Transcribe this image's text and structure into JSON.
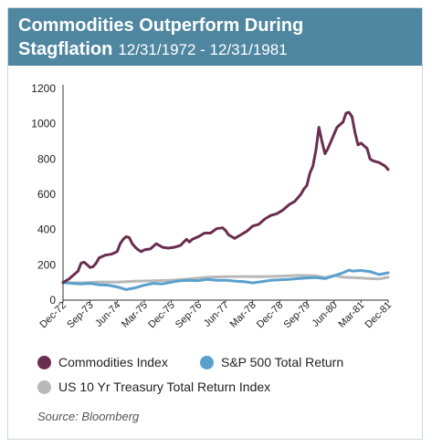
{
  "header": {
    "title_line1": "Commodities Outperform During",
    "title_line2": "Stagflation",
    "date_range": "12/31/1972 - 12/31/1981"
  },
  "colors": {
    "header_bg": "#4f86a0",
    "commodities": "#6a2e4f",
    "sp500": "#5aa0cc",
    "treasury": "#b8b8b8"
  },
  "source": "Source: Bloomberg",
  "chart_data": {
    "type": "line",
    "title": "Commodities Outperform During Stagflation 12/31/1972 - 12/31/1981",
    "xlabel": "",
    "ylabel": "",
    "x_range": [
      "1972-12",
      "1981-12"
    ],
    "ylim": [
      0,
      1200
    ],
    "yticks": [
      0,
      200,
      400,
      600,
      800,
      1000,
      1200
    ],
    "xticks": [
      "Dec-72",
      "Sep-73",
      "Jun-74",
      "Mar-75",
      "Dec-75",
      "Sep-76",
      "Jun-77",
      "Mar-78",
      "Dec-78",
      "Sep-79",
      "Jun-80",
      "Mar-81",
      "Dec-81"
    ],
    "grid": false,
    "legend_position": "bottom",
    "series": [
      {
        "name": "Commodities Index",
        "x": [
          "1972-12",
          "1973-02",
          "1973-04",
          "1973-05",
          "1973-06",
          "1973-07",
          "1973-08",
          "1973-09",
          "1973-10",
          "1973-11",
          "1973-12",
          "1974-02",
          "1974-04",
          "1974-06",
          "1974-07",
          "1974-08",
          "1974-09",
          "1974-10",
          "1974-11",
          "1974-12",
          "1975-01",
          "1975-02",
          "1975-03",
          "1975-05",
          "1975-07",
          "1975-08",
          "1975-09",
          "1975-11",
          "1976-01",
          "1976-03",
          "1976-05",
          "1976-06",
          "1976-07",
          "1976-09",
          "1976-11",
          "1977-01",
          "1977-03",
          "1977-05",
          "1977-06",
          "1977-07",
          "1977-09",
          "1977-11",
          "1978-01",
          "1978-03",
          "1978-05",
          "1978-07",
          "1978-09",
          "1978-11",
          "1979-01",
          "1979-03",
          "1979-05",
          "1979-07",
          "1979-08",
          "1979-09",
          "1979-10",
          "1979-11",
          "1979-12",
          "1980-01",
          "1980-02",
          "1980-03",
          "1980-04",
          "1980-05",
          "1980-07",
          "1980-09",
          "1980-10",
          "1980-11",
          "1980-12",
          "1981-01",
          "1981-02",
          "1981-03",
          "1981-05",
          "1981-06",
          "1981-07",
          "1981-09",
          "1981-11",
          "1981-12"
        ],
        "values": [
          100,
          120,
          150,
          165,
          210,
          215,
          200,
          185,
          190,
          210,
          240,
          255,
          260,
          275,
          320,
          345,
          360,
          355,
          320,
          300,
          285,
          275,
          285,
          290,
          320,
          310,
          300,
          295,
          300,
          310,
          345,
          330,
          345,
          360,
          380,
          380,
          405,
          410,
          395,
          370,
          350,
          370,
          390,
          420,
          430,
          460,
          480,
          490,
          510,
          540,
          560,
          600,
          630,
          650,
          720,
          760,
          850,
          980,
          900,
          830,
          860,
          900,
          980,
          1010,
          1060,
          1065,
          1040,
          950,
          880,
          890,
          860,
          800,
          790,
          780,
          760,
          740
        ]
      },
      {
        "name": "S&P 500 Total Return",
        "x": [
          "1972-12",
          "1973-03",
          "1973-06",
          "1973-09",
          "1973-12",
          "1974-03",
          "1974-06",
          "1974-09",
          "1974-12",
          "1975-03",
          "1975-06",
          "1975-09",
          "1975-12",
          "1976-03",
          "1976-06",
          "1976-09",
          "1976-12",
          "1977-03",
          "1977-06",
          "1977-09",
          "1977-12",
          "1978-03",
          "1978-06",
          "1978-09",
          "1978-12",
          "1979-03",
          "1979-06",
          "1979-09",
          "1979-12",
          "1980-03",
          "1980-06",
          "1980-09",
          "1980-11",
          "1980-12",
          "1981-03",
          "1981-06",
          "1981-09",
          "1981-12"
        ],
        "values": [
          100,
          95,
          92,
          95,
          87,
          85,
          75,
          60,
          70,
          85,
          95,
          92,
          102,
          110,
          112,
          110,
          118,
          112,
          113,
          108,
          105,
          98,
          105,
          112,
          115,
          118,
          122,
          125,
          128,
          122,
          138,
          155,
          170,
          165,
          168,
          162,
          145,
          155
        ]
      },
      {
        "name": "US 10 Yr Treasury Total Return Index",
        "x": [
          "1972-12",
          "1973-06",
          "1973-12",
          "1974-06",
          "1974-12",
          "1975-06",
          "1975-12",
          "1976-06",
          "1976-12",
          "1977-06",
          "1977-12",
          "1978-06",
          "1978-12",
          "1979-06",
          "1979-12",
          "1980-03",
          "1980-06",
          "1980-09",
          "1980-12",
          "1981-03",
          "1981-06",
          "1981-09",
          "1981-12"
        ],
        "values": [
          100,
          98,
          103,
          102,
          107,
          110,
          113,
          120,
          130,
          133,
          134,
          133,
          136,
          140,
          138,
          128,
          140,
          130,
          128,
          125,
          122,
          120,
          130
        ]
      }
    ]
  }
}
